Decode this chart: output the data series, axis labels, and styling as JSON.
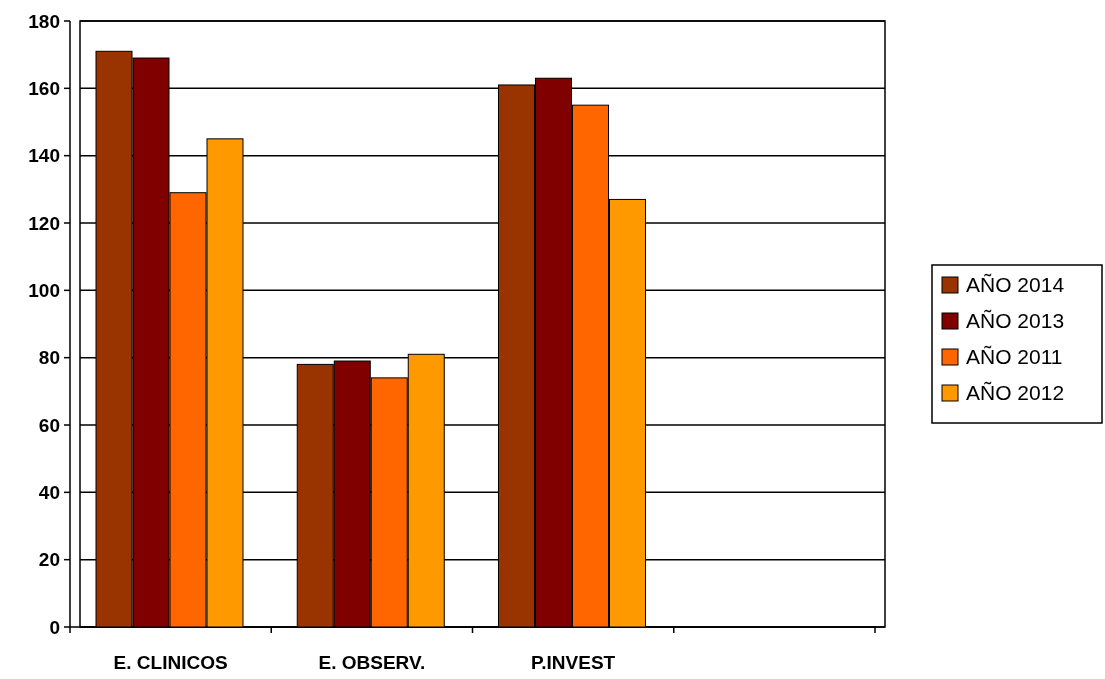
{
  "chart_data": {
    "type": "bar",
    "categories": [
      "E. CLINICOS",
      "E. OBSERV.",
      "P.INVEST",
      null
    ],
    "series": [
      {
        "name": "AÑO 2014",
        "color": "#993300",
        "values": [
          171,
          78,
          161,
          null
        ]
      },
      {
        "name": "AÑO 2013",
        "color": "#800000",
        "values": [
          169,
          79,
          163,
          null
        ]
      },
      {
        "name": "AÑO 2011",
        "color": "#ff6600",
        "values": [
          129,
          74,
          155,
          null
        ]
      },
      {
        "name": "AÑO 2012",
        "color": "#ff9900",
        "values": [
          145,
          81,
          127,
          null
        ]
      }
    ],
    "ylim": [
      0,
      180
    ],
    "yticks": [
      0,
      20,
      40,
      60,
      80,
      100,
      120,
      140,
      160,
      180
    ],
    "grid": "y",
    "legend": "right"
  }
}
